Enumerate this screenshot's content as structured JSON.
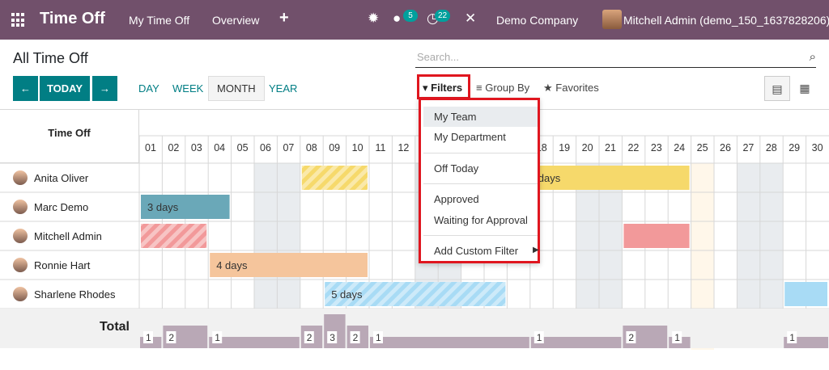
{
  "navbar": {
    "app_title": "Time Off",
    "menu": [
      "My Time Off",
      "Overview"
    ],
    "add_icon": "plus-icon",
    "messages_count": "5",
    "activity_count": "22",
    "company": "Demo Company",
    "user": "Mitchell Admin (demo_150_1637828206)",
    "icons": [
      "apps-icon",
      "bug-icon",
      "chat-icon",
      "clock-icon",
      "tools-icon"
    ]
  },
  "control": {
    "title": "All Time Off",
    "search_placeholder": "Search...",
    "today_label": "TODAY",
    "scales": [
      "DAY",
      "WEEK",
      "MONTH",
      "YEAR"
    ],
    "active_scale": "MONTH",
    "filters_label": "Filters",
    "group_by_label": "Group By",
    "favorites_label": "Favorites",
    "view_icons": [
      "gantt-icon",
      "calendar-icon"
    ]
  },
  "filters_menu": {
    "items": [
      "My Team",
      "My Department",
      "Off Today",
      "Approved",
      "Waiting for Approval",
      "Add Custom Filter"
    ],
    "hovered": "My Team"
  },
  "gantt": {
    "row_header": "Time Off",
    "days": [
      "01",
      "02",
      "03",
      "04",
      "05",
      "06",
      "07",
      "08",
      "09",
      "10",
      "11",
      "12",
      "13",
      "14",
      "15",
      "16",
      "17",
      "18",
      "19",
      "20",
      "21",
      "22",
      "23",
      "24",
      "25",
      "26",
      "27",
      "28",
      "29",
      "30"
    ],
    "today": "25",
    "rows": [
      {
        "name": "Anita Oliver"
      },
      {
        "name": "Marc Demo"
      },
      {
        "name": "Mitchell Admin"
      },
      {
        "name": "Ronnie Hart"
      },
      {
        "name": "Sharlene Rhodes"
      }
    ],
    "bar_labels": [
      "3 days",
      "4 days",
      "5 days",
      "days"
    ],
    "total_label": "Total",
    "total_counts": [
      "1",
      "2",
      "1",
      "2",
      "3",
      "2",
      "1",
      "1",
      "2",
      "1",
      "1"
    ]
  },
  "colors": {
    "navbar": "#71506b",
    "accent": "#017e84",
    "filter_highlight": "#e0161f",
    "yellow": "#f6d96b",
    "teal": "#6aa8b8",
    "red": "#f2999a",
    "orange": "#f5c59c",
    "blue": "#a8dbf5"
  }
}
